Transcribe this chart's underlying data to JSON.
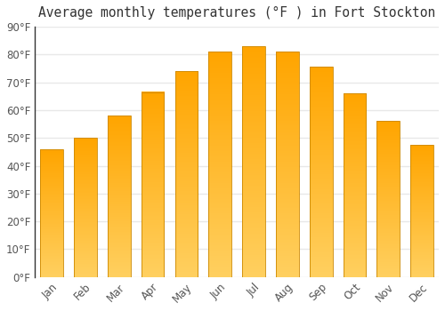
{
  "months": [
    "Jan",
    "Feb",
    "Mar",
    "Apr",
    "May",
    "Jun",
    "Jul",
    "Aug",
    "Sep",
    "Oct",
    "Nov",
    "Dec"
  ],
  "values": [
    46,
    50,
    58,
    66.5,
    74,
    81,
    83,
    81,
    75.5,
    66,
    56,
    47.5
  ],
  "bar_color_bottom": "#FFD060",
  "bar_color_top": "#FFA500",
  "title": "Average monthly temperatures (°F ) in Fort Stockton",
  "ylim": [
    0,
    90
  ],
  "yticks": [
    0,
    10,
    20,
    30,
    40,
    50,
    60,
    70,
    80,
    90
  ],
  "ytick_labels": [
    "0°F",
    "10°F",
    "20°F",
    "30°F",
    "40°F",
    "50°F",
    "60°F",
    "70°F",
    "80°F",
    "90°F"
  ],
  "background_color": "#ffffff",
  "grid_color": "#e8e8e8",
  "title_fontsize": 10.5,
  "tick_fontsize": 8.5,
  "bar_width": 0.68,
  "left_spine_color": "#333333"
}
